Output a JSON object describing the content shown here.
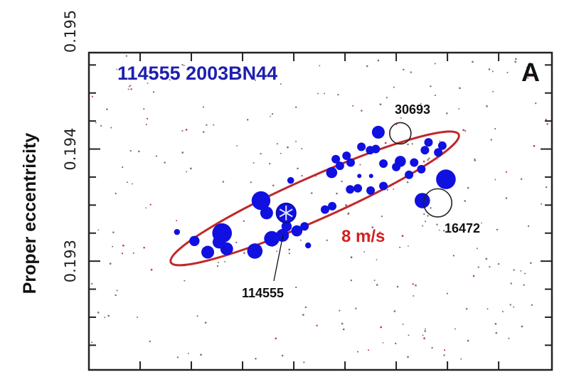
{
  "chart_data": {
    "type": "scatter",
    "title": "114555 2003BN44",
    "panel_label": "A",
    "ylabel": "Proper eccentricity",
    "xlabel": "",
    "ylim": [
      0.19203,
      0.19486
    ],
    "xlim": [
      0,
      9.04
    ],
    "x_ticks": [
      1,
      2,
      3,
      4,
      5,
      6,
      7,
      8
    ],
    "y_ticks": [
      {
        "value": 0.195,
        "label": "0.195"
      },
      {
        "value": 0.194,
        "label": "0.194"
      },
      {
        "value": 0.193,
        "label": "0.193"
      }
    ],
    "y_minor_step": 0.00025,
    "grid": false,
    "colors": {
      "members": "#1010e0",
      "ellipse": "#c0282a",
      "text_title": "#1f1fb0",
      "velocity": "#d42020",
      "background_dots": "#8a7070"
    },
    "members": [
      {
        "x": 5.65,
        "y": 0.19415,
        "size": 1.5
      },
      {
        "x": 5.32,
        "y": 0.19402,
        "size": 1
      },
      {
        "x": 5.49,
        "y": 0.19399,
        "size": 1
      },
      {
        "x": 5.6,
        "y": 0.194,
        "size": 1
      },
      {
        "x": 6.63,
        "y": 0.19406,
        "size": 1
      },
      {
        "x": 6.9,
        "y": 0.19403,
        "size": 1
      },
      {
        "x": 6.56,
        "y": 0.19399,
        "size": 1
      },
      {
        "x": 6.82,
        "y": 0.19397,
        "size": 1
      },
      {
        "x": 4.82,
        "y": 0.19391,
        "size": 1
      },
      {
        "x": 5.03,
        "y": 0.19394,
        "size": 1
      },
      {
        "x": 5.11,
        "y": 0.19388,
        "size": 1
      },
      {
        "x": 4.9,
        "y": 0.19385,
        "size": 1
      },
      {
        "x": 4.74,
        "y": 0.19379,
        "size": 1.3
      },
      {
        "x": 6.08,
        "y": 0.19389,
        "size": 1.3
      },
      {
        "x": 6.0,
        "y": 0.19384,
        "size": 1
      },
      {
        "x": 5.75,
        "y": 0.19387,
        "size": 1
      },
      {
        "x": 6.35,
        "y": 0.19388,
        "size": 1
      },
      {
        "x": 6.49,
        "y": 0.19382,
        "size": 1
      },
      {
        "x": 6.25,
        "y": 0.19377,
        "size": 1
      },
      {
        "x": 6.97,
        "y": 0.19373,
        "size": 2.3
      },
      {
        "x": 6.51,
        "y": 0.19354,
        "size": 1.8
      },
      {
        "x": 5.28,
        "y": 0.19376,
        "size": 0.5
      },
      {
        "x": 5.51,
        "y": 0.19376,
        "size": 0.5
      },
      {
        "x": 5.1,
        "y": 0.19364,
        "size": 1
      },
      {
        "x": 5.25,
        "y": 0.19365,
        "size": 1
      },
      {
        "x": 5.5,
        "y": 0.19363,
        "size": 1
      },
      {
        "x": 5.75,
        "y": 0.19367,
        "size": 1
      },
      {
        "x": 4.61,
        "y": 0.19346,
        "size": 1
      },
      {
        "x": 4.75,
        "y": 0.19349,
        "size": 1
      },
      {
        "x": 3.94,
        "y": 0.19372,
        "size": 0.8
      },
      {
        "x": 3.36,
        "y": 0.19354,
        "size": 2.2
      },
      {
        "x": 3.47,
        "y": 0.19343,
        "size": 1.5
      },
      {
        "x": 3.86,
        "y": 0.19331,
        "size": 1.2
      },
      {
        "x": 4.06,
        "y": 0.19327,
        "size": 1.3
      },
      {
        "x": 4.21,
        "y": 0.19331,
        "size": 1
      },
      {
        "x": 3.78,
        "y": 0.19323,
        "size": 1.5
      },
      {
        "x": 3.57,
        "y": 0.1932,
        "size": 1.8
      },
      {
        "x": 3.24,
        "y": 0.19309,
        "size": 1.8
      },
      {
        "x": 2.6,
        "y": 0.19325,
        "size": 2.3
      },
      {
        "x": 2.54,
        "y": 0.19317,
        "size": 1.5
      },
      {
        "x": 2.69,
        "y": 0.19311,
        "size": 1.5
      },
      {
        "x": 2.32,
        "y": 0.19308,
        "size": 1.5
      },
      {
        "x": 2.06,
        "y": 0.19318,
        "size": 1.2
      },
      {
        "x": 1.72,
        "y": 0.19326,
        "size": 0.7
      },
      {
        "x": 4.28,
        "y": 0.19314,
        "size": 0.7
      }
    ],
    "parent": {
      "name": "114555",
      "x": 3.85,
      "y": 0.19343,
      "size": 2.3,
      "marker": "asterisk"
    },
    "interlopers": [
      {
        "name": "30693",
        "x": 6.08,
        "y": 0.19414,
        "size": 2.5,
        "marker": "open-circle"
      },
      {
        "name": "16472",
        "x": 6.81,
        "y": 0.19352,
        "size": 3.3,
        "marker": "open-circle"
      }
    ],
    "ellipse": {
      "label": "8 m/s",
      "end_a": {
        "x": 1.6,
        "y": 0.19299
      },
      "end_b": {
        "x": 7.22,
        "y": 0.19413
      }
    }
  }
}
